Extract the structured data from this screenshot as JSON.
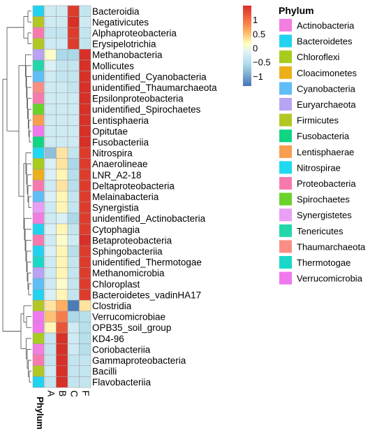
{
  "chart_data": {
    "type": "heatmap",
    "columns": [
      "A",
      "B",
      "C",
      "F"
    ],
    "annotation_title": "Phylum",
    "rows": [
      {
        "label": "Bacteroidia",
        "phylum": "Bacteroidetes",
        "values": [
          -0.3,
          -0.3,
          1.4,
          -0.4
        ]
      },
      {
        "label": "Negativicutes",
        "phylum": "Firmicutes",
        "values": [
          -0.3,
          -0.3,
          1.5,
          -0.3
        ]
      },
      {
        "label": "Alphaproteobacteria",
        "phylum": "Proteobacteria",
        "values": [
          -0.4,
          -0.4,
          1.4,
          -0.4
        ]
      },
      {
        "label": "Erysipelotrichia",
        "phylum": "Firmicutes",
        "values": [
          -0.3,
          -0.3,
          1.4,
          -0.4
        ]
      },
      {
        "label": "Methanobacteria",
        "phylum": "Euryarchaeota",
        "values": [
          0.1,
          -0.6,
          -0.6,
          1.5
        ]
      },
      {
        "label": "Mollicutes",
        "phylum": "Tenericutes",
        "values": [
          -0.2,
          -0.4,
          -0.4,
          1.5
        ]
      },
      {
        "label": "unidentified_Cyanobacteria",
        "phylum": "Cyanobacteria",
        "values": [
          -0.3,
          -0.4,
          -0.4,
          1.5
        ]
      },
      {
        "label": "unidentified_Thaumarchaeota",
        "phylum": "Thaumarchaeota",
        "values": [
          -0.3,
          -0.3,
          -0.4,
          1.5
        ]
      },
      {
        "label": "Epsilonproteobacteria",
        "phylum": "Proteobacteria",
        "values": [
          -0.3,
          -0.3,
          -0.3,
          1.5
        ]
      },
      {
        "label": "unidentified_Spirochaetes",
        "phylum": "Spirochaetes",
        "values": [
          -0.3,
          -0.3,
          -0.3,
          1.5
        ]
      },
      {
        "label": "Lentisphaeria",
        "phylum": "Lentisphaerae",
        "values": [
          -0.3,
          -0.3,
          -0.3,
          1.5
        ]
      },
      {
        "label": "Opitutae",
        "phylum": "Verrucomicrobia",
        "values": [
          -0.3,
          -0.3,
          -0.3,
          1.5
        ]
      },
      {
        "label": "Fusobacteriia",
        "phylum": "Fusobacteria",
        "values": [
          -0.3,
          -0.3,
          -0.3,
          1.5
        ]
      },
      {
        "label": "Nitrospira",
        "phylum": "Nitrospirae",
        "values": [
          -0.8,
          0.3,
          -0.4,
          1.4
        ]
      },
      {
        "label": "Anaerolineae",
        "phylum": "Chloroflexi",
        "values": [
          -0.2,
          0.3,
          -0.6,
          1.4
        ]
      },
      {
        "label": "LNR_A2-18",
        "phylum": "Cloacimonetes",
        "values": [
          -0.2,
          0.2,
          -0.5,
          1.4
        ]
      },
      {
        "label": "Deltaproteobacteria",
        "phylum": "Proteobacteria",
        "values": [
          -0.3,
          0.3,
          -0.5,
          1.4
        ]
      },
      {
        "label": "Melainabacteria",
        "phylum": "Cyanobacteria",
        "values": [
          -0.2,
          0.2,
          -0.4,
          1.4
        ]
      },
      {
        "label": "Synergistia",
        "phylum": "Synergistetes",
        "values": [
          -0.3,
          0.2,
          -0.4,
          1.4
        ]
      },
      {
        "label": "unidentified_Actinobacteria",
        "phylum": "Actinobacteria",
        "values": [
          -0.3,
          -0.2,
          -0.6,
          1.4
        ]
      },
      {
        "label": "Cytophagia",
        "phylum": "Bacteroidetes",
        "values": [
          -0.2,
          0.2,
          -0.4,
          1.4
        ]
      },
      {
        "label": "Betaproteobacteria",
        "phylum": "Proteobacteria",
        "values": [
          -0.3,
          0.1,
          -0.3,
          1.5
        ]
      },
      {
        "label": "Sphingobacteriia",
        "phylum": "Bacteroidetes",
        "values": [
          -0.2,
          0.2,
          -0.5,
          1.4
        ]
      },
      {
        "label": "unidentified_Thermotogae",
        "phylum": "Thermotogae",
        "values": [
          -0.3,
          0.2,
          -0.4,
          1.4
        ]
      },
      {
        "label": "Methanomicrobia",
        "phylum": "Euryarchaeota",
        "values": [
          -0.3,
          0.2,
          -0.4,
          1.4
        ]
      },
      {
        "label": "Chloroplast",
        "phylum": "Cyanobacteria",
        "values": [
          -0.3,
          0.1,
          -0.4,
          1.4
        ]
      },
      {
        "label": "Bacteroidetes_vadinHA17",
        "phylum": "Bacteroidetes",
        "values": [
          -0.2,
          0.2,
          -0.4,
          1.4
        ]
      },
      {
        "label": "Clostridia",
        "phylum": "Firmicutes",
        "values": [
          0.3,
          0.6,
          -1.3,
          0.3
        ]
      },
      {
        "label": "Verrucomicrobiae",
        "phylum": "Verrucomicrobia",
        "values": [
          0.5,
          0.9,
          -0.6,
          -0.5
        ]
      },
      {
        "label": "OPB35_soil_group",
        "phylum": "Verrucomicrobia",
        "values": [
          0.2,
          1.2,
          -0.3,
          -0.5
        ]
      },
      {
        "label": "KD4-96",
        "phylum": "Chloroflexi",
        "values": [
          -0.4,
          1.5,
          -0.3,
          -0.5
        ]
      },
      {
        "label": "Coriobacteriia",
        "phylum": "Actinobacteria",
        "values": [
          -0.4,
          1.5,
          -0.3,
          -0.5
        ]
      },
      {
        "label": "Gammaproteobacteria",
        "phylum": "Proteobacteria",
        "values": [
          -0.4,
          1.5,
          -0.4,
          -0.4
        ]
      },
      {
        "label": "Bacilli",
        "phylum": "Firmicutes",
        "values": [
          -0.3,
          1.5,
          -0.4,
          -0.4
        ]
      },
      {
        "label": "Flavobacteriia",
        "phylum": "Bacteroidetes",
        "values": [
          -0.4,
          1.5,
          -0.4,
          -0.4
        ]
      }
    ],
    "color_scale": {
      "ticks": [
        1,
        0.5,
        0,
        -0.5,
        -1
      ],
      "tick_labels": [
        "1",
        "0.5",
        "0",
        "−0.5",
        "−1"
      ],
      "range": [
        -1.35,
        1.5
      ],
      "stops": [
        {
          "v": -1.35,
          "c": "#4575b4"
        },
        {
          "v": -0.6,
          "c": "#abd9e9"
        },
        {
          "v": -0.15,
          "c": "#e0f3f8"
        },
        {
          "v": 0.15,
          "c": "#ffffbf"
        },
        {
          "v": 0.6,
          "c": "#fdae61"
        },
        {
          "v": 1.0,
          "c": "#f46d43"
        },
        {
          "v": 1.5,
          "c": "#d73027"
        }
      ]
    },
    "legend": {
      "title": "Phylum",
      "items": [
        {
          "name": "Actinobacteria",
          "color": "#f27ee0"
        },
        {
          "name": "Bacteroidetes",
          "color": "#22d3f0"
        },
        {
          "name": "Chloroflexi",
          "color": "#a8cc1e"
        },
        {
          "name": "Cloacimonetes",
          "color": "#ecb01a"
        },
        {
          "name": "Cyanobacteria",
          "color": "#5fbef6"
        },
        {
          "name": "Euryarchaeota",
          "color": "#b9a3f4"
        },
        {
          "name": "Firmicutes",
          "color": "#b3c724"
        },
        {
          "name": "Fusobacteria",
          "color": "#10d583"
        },
        {
          "name": "Lentisphaerae",
          "color": "#f99d4e"
        },
        {
          "name": "Nitrospirae",
          "color": "#1ed9f0"
        },
        {
          "name": "Proteobacteria",
          "color": "#f77aaf"
        },
        {
          "name": "Spirochaetes",
          "color": "#6bd22a"
        },
        {
          "name": "Synergistetes",
          "color": "#ea9ef6"
        },
        {
          "name": "Tenericutes",
          "color": "#23d6ab"
        },
        {
          "name": "Thaumarchaeota",
          "color": "#fa8d86"
        },
        {
          "name": "Thermotogae",
          "color": "#1ad8c9"
        },
        {
          "name": "Verrucomicrobia",
          "color": "#f078ee"
        }
      ]
    }
  }
}
